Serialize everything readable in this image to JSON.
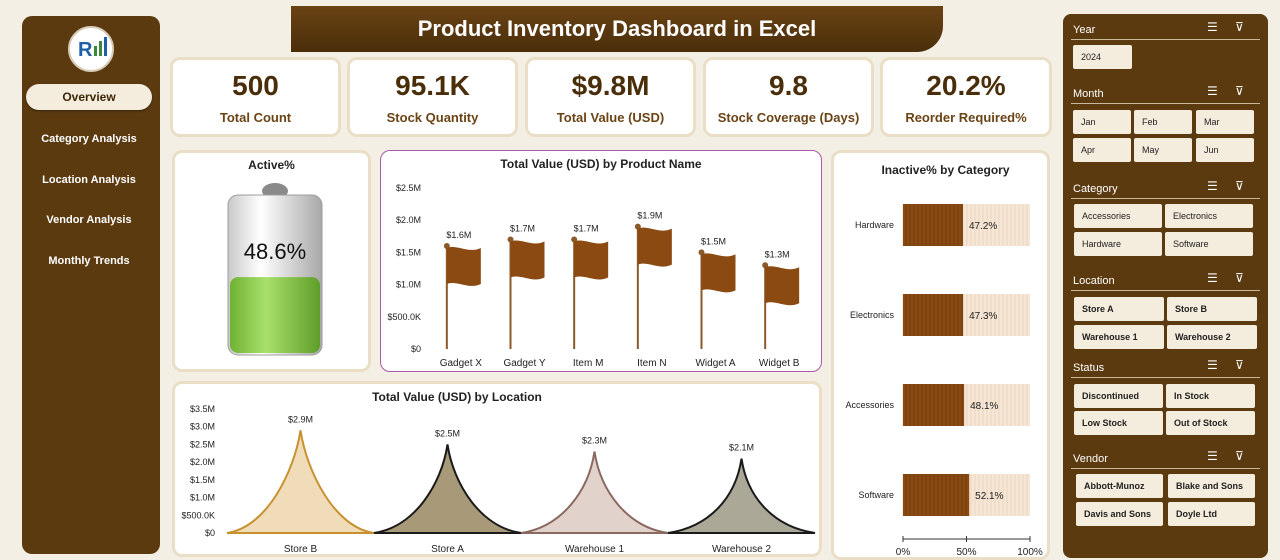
{
  "title": "Product Inventory Dashboard in Excel",
  "nav": [
    {
      "label": "Overview"
    },
    {
      "label": "Category Analysis"
    },
    {
      "label": "Location Analysis"
    },
    {
      "label": "Vendor Analysis"
    },
    {
      "label": "Monthly Trends"
    }
  ],
  "kpis": [
    {
      "value": "500",
      "label": "Total  Count"
    },
    {
      "value": "95.1K",
      "label": "Stock Quantity"
    },
    {
      "value": "$9.8M",
      "label": "Total Value (USD)"
    },
    {
      "value": "9.8",
      "label": "Stock Coverage (Days)"
    },
    {
      "value": "20.2%",
      "label": "Reorder Required%"
    }
  ],
  "active": {
    "title": "Active%",
    "value_label": "48.6%",
    "fill": 0.486
  },
  "chart_data": [
    {
      "type": "bar",
      "title": "Total Value (USD) by Product Name",
      "categories": [
        "Gadget X",
        "Gadget Y",
        "Item M",
        "Item N",
        "Widget A",
        "Widget B"
      ],
      "values": [
        1.6,
        1.7,
        1.7,
        1.9,
        1.5,
        1.3
      ],
      "data_labels": [
        "$1.6M",
        "$1.7M",
        "$1.7M",
        "$1.9M",
        "$1.5M",
        "$1.3M"
      ],
      "yticks": [
        "$0",
        "$500.0K",
        "$1.0M",
        "$1.5M",
        "$2.0M",
        "$2.5M"
      ],
      "ylim": [
        0,
        2.5
      ]
    },
    {
      "type": "bar",
      "title": "Inactive% by Category",
      "orientation": "horizontal",
      "categories": [
        "Hardware",
        "Electronics",
        "Accessories",
        "Software"
      ],
      "values": [
        47.2,
        47.3,
        48.1,
        52.1
      ],
      "data_labels": [
        "47.2%",
        "47.3%",
        "48.1%",
        "52.1%"
      ],
      "xticks": [
        "0%",
        "50%",
        "100%"
      ],
      "xlim": [
        0,
        100
      ]
    },
    {
      "type": "area",
      "title": "Total Value (USD) by Location",
      "categories": [
        "Store B",
        "Store A",
        "Warehouse 1",
        "Warehouse 2"
      ],
      "values": [
        2.9,
        2.5,
        2.3,
        2.1
      ],
      "data_labels": [
        "$2.9M",
        "$2.5M",
        "$2.3M",
        "$2.1M"
      ],
      "yticks": [
        "$0",
        "$500.0K",
        "$1.0M",
        "$1.5M",
        "$2.0M",
        "$2.5M",
        "$3.0M",
        "$3.5M"
      ],
      "ylim": [
        0,
        3.5
      ],
      "colors": [
        "#f0dcb8",
        "#a89a78",
        "#e2d2cc",
        "#aba898"
      ]
    }
  ],
  "slicers": {
    "year": {
      "title": "Year",
      "items": [
        "2024"
      ]
    },
    "month": {
      "title": "Month",
      "items": [
        "Jan",
        "Feb",
        "Mar",
        "Apr",
        "May",
        "Jun"
      ]
    },
    "category": {
      "title": "Category",
      "items": [
        "Accessories",
        "Electronics",
        "Hardware",
        "Software"
      ]
    },
    "location": {
      "title": "Location",
      "items": [
        "Store A",
        "Store B",
        "Warehouse 1",
        "Warehouse 2"
      ]
    },
    "status": {
      "title": "Status",
      "items": [
        "Discontinued",
        "In Stock",
        "Low Stock",
        "Out of Stock"
      ]
    },
    "vendor": {
      "title": "Vendor",
      "items": [
        "Abbott-Munoz",
        "Blake and Sons",
        "Davis and Sons",
        "Doyle Ltd"
      ]
    }
  },
  "colors": {
    "brown": "#5b3a10",
    "bar": "#8b4a12",
    "bar_bg": "#f5e6d6",
    "battery": "#8ad04a"
  }
}
